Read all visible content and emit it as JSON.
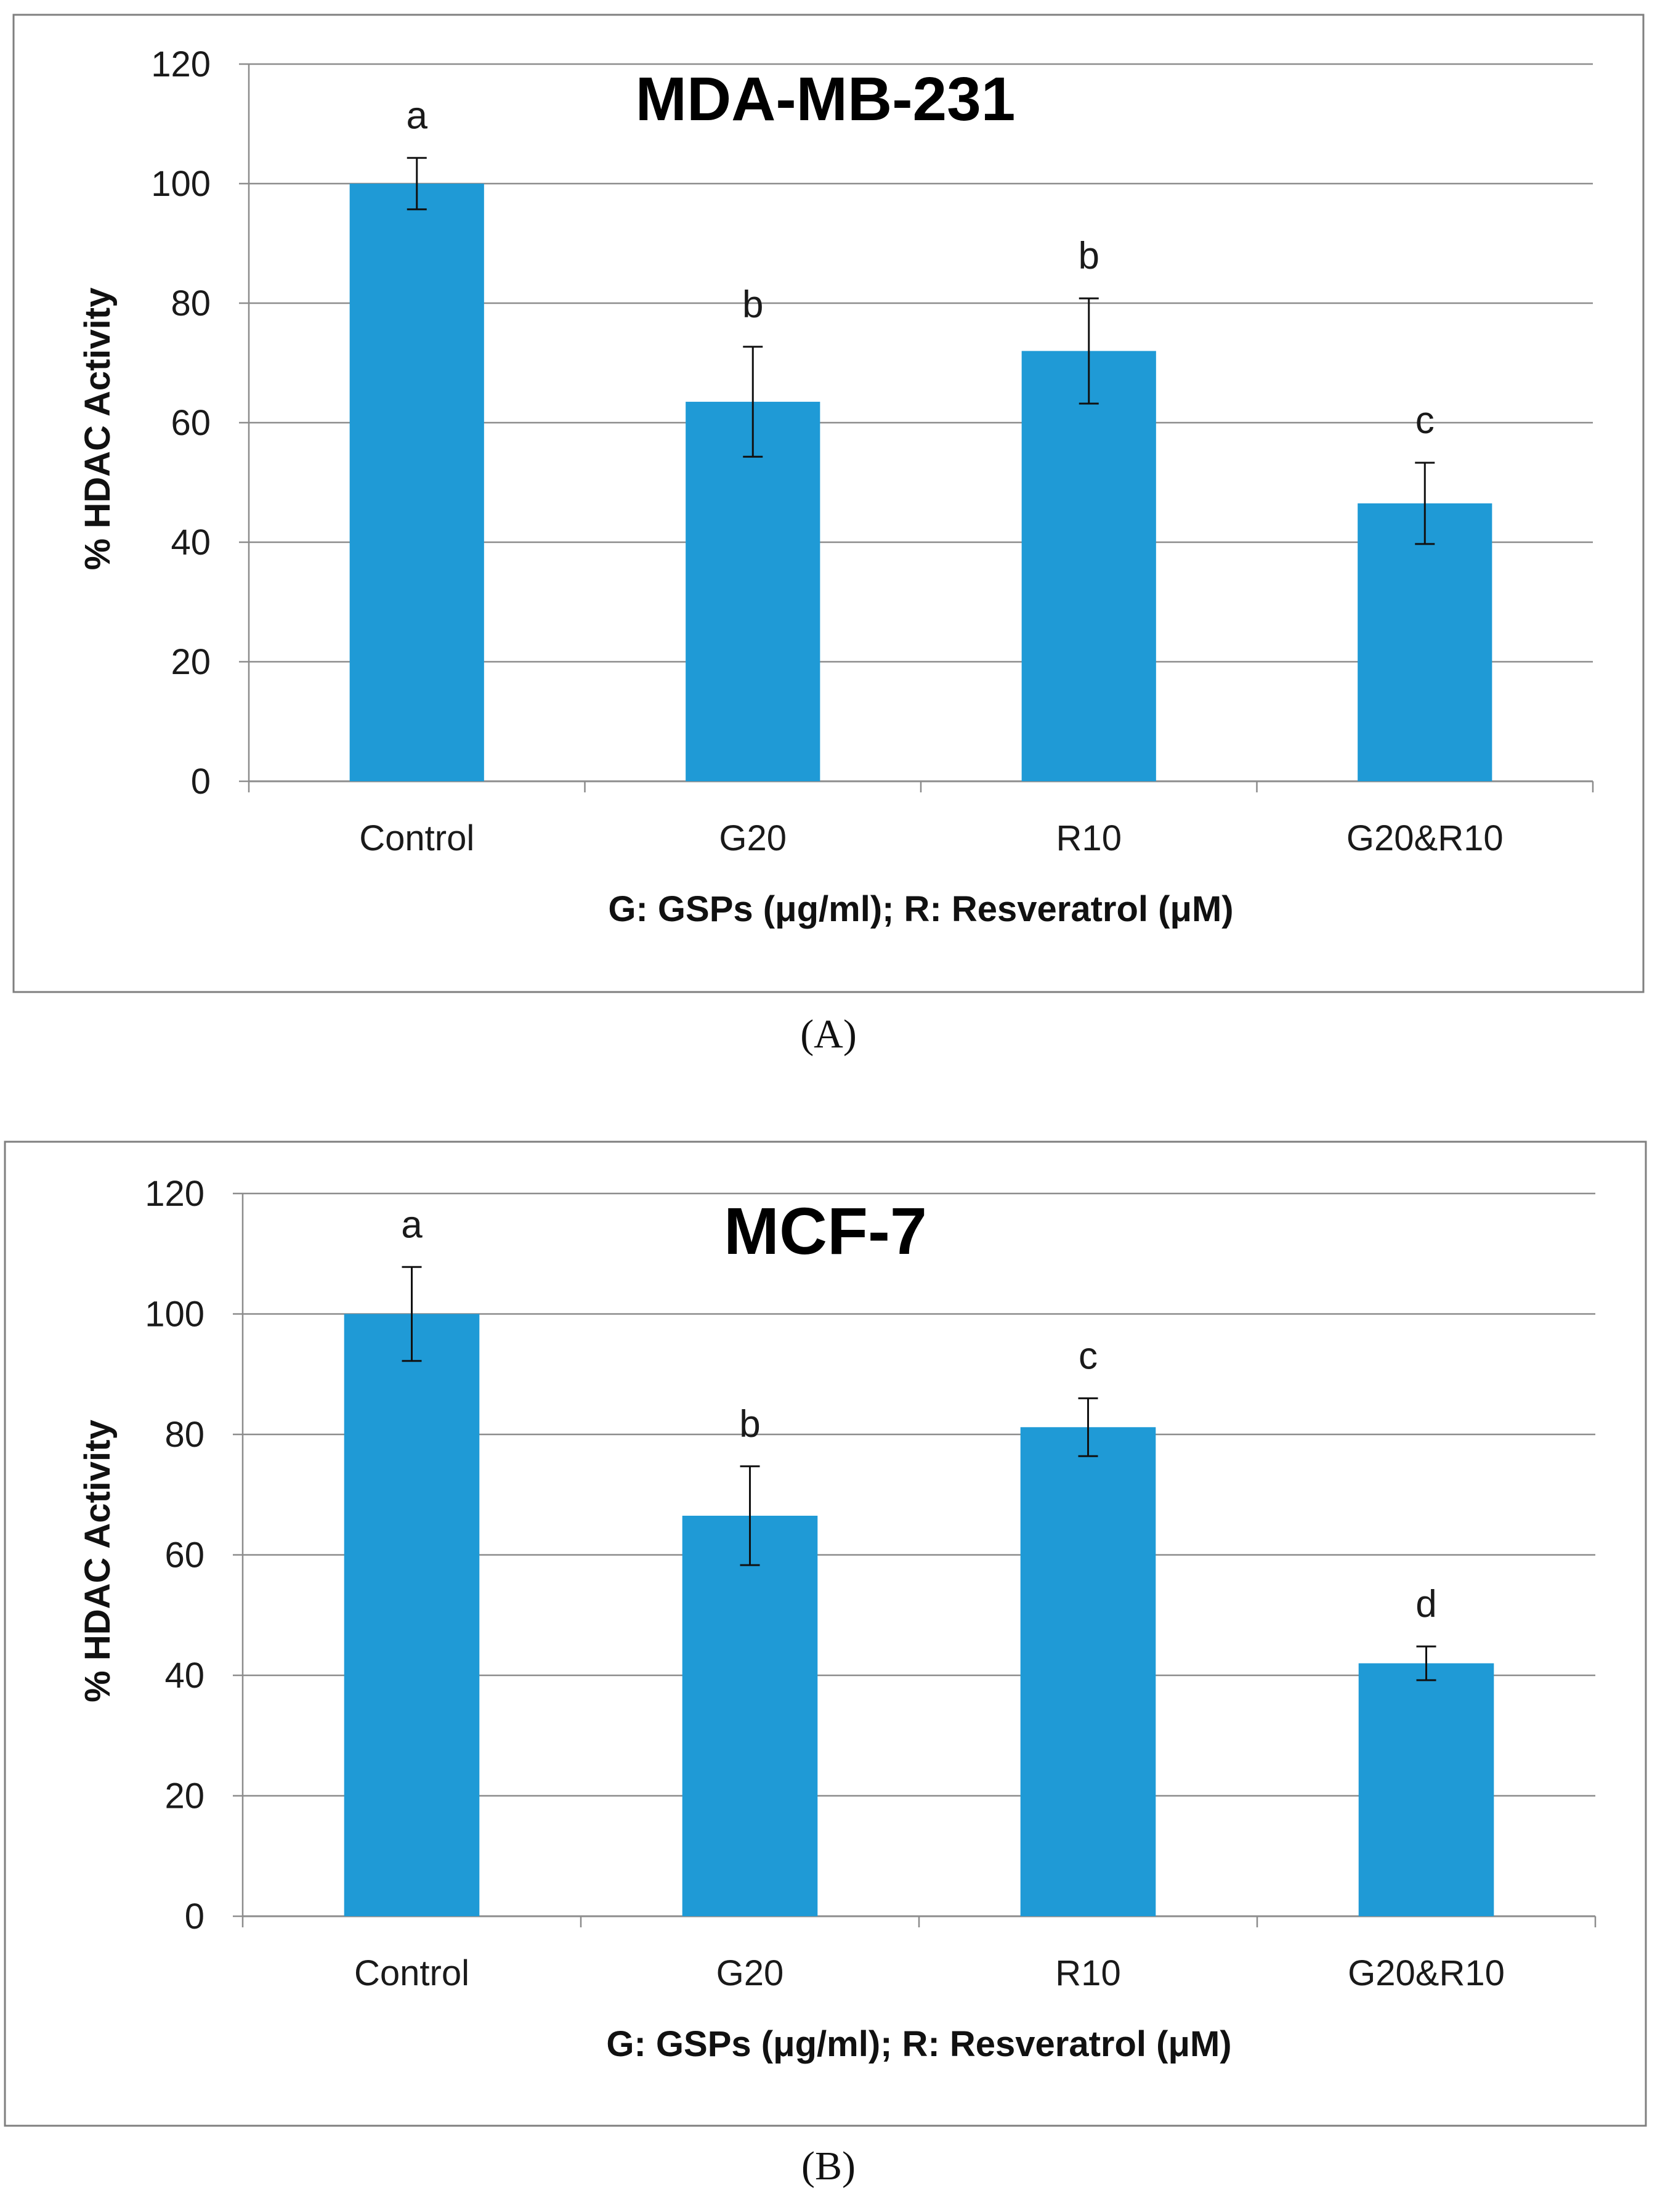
{
  "chart_data": [
    {
      "type": "bar",
      "title": "MDA-MB-231",
      "panel_label": "(A)",
      "categories": [
        "Control",
        "G20",
        "R10",
        "G20&R10"
      ],
      "values": [
        100,
        63.5,
        72,
        46.5
      ],
      "errors": [
        4.3,
        9.2,
        8.8,
        6.8
      ],
      "significance_letters": [
        "a",
        "b",
        "b",
        "c"
      ],
      "xlabel": "G: GSPs (μg/ml); R: Resveratrol (μM)",
      "ylabel": "% HDAC Activity",
      "ylim": [
        0,
        120
      ],
      "yticks": [
        "0",
        "20",
        "40",
        "60",
        "80",
        "100",
        "120"
      ],
      "grid": true,
      "bar_color": "#1f9ad6"
    },
    {
      "type": "bar",
      "title": "MCF-7",
      "panel_label": "(B)",
      "categories": [
        "Control",
        "G20",
        "R10",
        "G20&R10"
      ],
      "values": [
        100,
        66.5,
        81.2,
        42
      ],
      "errors": [
        7.8,
        8.2,
        4.8,
        2.8
      ],
      "significance_letters": [
        "a",
        "b",
        "c",
        "d"
      ],
      "xlabel": "G: GSPs (μg/ml); R: Resveratrol (μM)",
      "ylabel": "% HDAC Activity",
      "ylim": [
        0,
        120
      ],
      "yticks": [
        "0",
        "20",
        "40",
        "60",
        "80",
        "100",
        "120"
      ],
      "grid": true,
      "bar_color": "#1f9ad6"
    }
  ]
}
